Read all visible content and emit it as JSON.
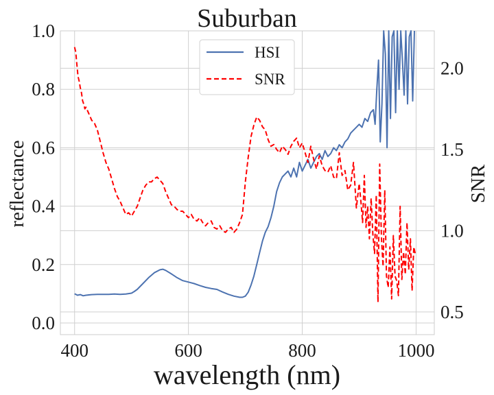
{
  "chart_data": {
    "type": "line",
    "title": "Suburban",
    "xlabel": "wavelength (nm)",
    "ylabel": "reflectance",
    "y2label": "SNR",
    "xlim": [
      375,
      1032
    ],
    "ylim": [
      -0.04,
      1.0
    ],
    "y2lim": [
      0.36,
      2.23
    ],
    "xticks": [
      400,
      600,
      800,
      1000
    ],
    "yticks": [
      0.0,
      0.2,
      0.4,
      0.6,
      0.8,
      1.0
    ],
    "y2ticks": [
      0.5,
      1.0,
      1.5,
      2.0
    ],
    "xtick_labels": [
      "400",
      "600",
      "800",
      "1000"
    ],
    "ytick_labels": [
      "0.0",
      "0.2",
      "0.4",
      "0.6",
      "0.8",
      "1.0"
    ],
    "y2tick_labels": [
      "0.5",
      "1.0",
      "1.5",
      "2.0"
    ],
    "grid": true,
    "legend_position": "top-center",
    "series": [
      {
        "name": "HSI",
        "axis": "left",
        "color": "#4c72b0",
        "style": "solid",
        "x": [
          400,
          405,
          410,
          415,
          420,
          430,
          440,
          450,
          460,
          470,
          480,
          490,
          500,
          505,
          510,
          520,
          530,
          540,
          550,
          555,
          560,
          570,
          580,
          590,
          600,
          610,
          620,
          630,
          640,
          650,
          660,
          670,
          680,
          690,
          695,
          700,
          705,
          710,
          715,
          720,
          725,
          730,
          735,
          740,
          745,
          750,
          755,
          760,
          765,
          770,
          775,
          780,
          785,
          790,
          795,
          800,
          805,
          810,
          815,
          820,
          825,
          830,
          835,
          840,
          845,
          850,
          855,
          860,
          865,
          870,
          875,
          880,
          885,
          890,
          895,
          900,
          905,
          910,
          915,
          920,
          925,
          928,
          931,
          934,
          937,
          940,
          943,
          946,
          949,
          952,
          955,
          958,
          961,
          964,
          967,
          970,
          973,
          976,
          979,
          982,
          985,
          988,
          991,
          994,
          997
        ],
        "y": [
          0.1,
          0.095,
          0.097,
          0.093,
          0.095,
          0.097,
          0.098,
          0.098,
          0.098,
          0.099,
          0.098,
          0.099,
          0.102,
          0.108,
          0.115,
          0.135,
          0.155,
          0.172,
          0.182,
          0.184,
          0.18,
          0.168,
          0.155,
          0.145,
          0.14,
          0.135,
          0.128,
          0.122,
          0.118,
          0.115,
          0.106,
          0.098,
          0.092,
          0.088,
          0.088,
          0.092,
          0.105,
          0.13,
          0.16,
          0.2,
          0.24,
          0.28,
          0.31,
          0.33,
          0.36,
          0.4,
          0.45,
          0.48,
          0.5,
          0.51,
          0.52,
          0.5,
          0.53,
          0.5,
          0.55,
          0.52,
          0.54,
          0.56,
          0.53,
          0.55,
          0.57,
          0.58,
          0.56,
          0.59,
          0.57,
          0.58,
          0.6,
          0.59,
          0.61,
          0.6,
          0.62,
          0.63,
          0.65,
          0.66,
          0.67,
          0.68,
          0.67,
          0.7,
          0.69,
          0.72,
          0.73,
          0.68,
          0.8,
          0.9,
          0.62,
          0.75,
          1.02,
          0.92,
          0.6,
          1.05,
          0.7,
          0.98,
          1.05,
          0.72,
          1.02,
          0.8,
          1.05,
          0.9,
          0.78,
          1.04,
          0.75,
          0.98,
          1.02,
          0.76,
          1.05
        ]
      },
      {
        "name": "SNR",
        "axis": "right",
        "color": "#ff0000",
        "style": "dashed",
        "x": [
          400,
          402,
          404,
          406,
          408,
          410,
          412,
          414,
          416,
          418,
          420,
          425,
          430,
          435,
          440,
          445,
          450,
          455,
          460,
          465,
          470,
          475,
          480,
          485,
          490,
          495,
          500,
          505,
          510,
          515,
          520,
          525,
          530,
          535,
          540,
          545,
          550,
          555,
          560,
          565,
          570,
          575,
          580,
          585,
          590,
          595,
          600,
          605,
          610,
          615,
          620,
          625,
          630,
          635,
          640,
          645,
          650,
          655,
          660,
          665,
          670,
          675,
          680,
          685,
          690,
          695,
          700,
          705,
          710,
          715,
          720,
          725,
          730,
          735,
          740,
          745,
          750,
          755,
          760,
          765,
          770,
          775,
          780,
          785,
          790,
          795,
          800,
          805,
          810,
          815,
          820,
          825,
          830,
          835,
          840,
          845,
          850,
          855,
          860,
          865,
          870,
          875,
          880,
          885,
          890,
          895,
          900,
          903,
          906,
          909,
          912,
          915,
          918,
          921,
          924,
          927,
          930,
          933,
          936,
          939,
          942,
          945,
          948,
          951,
          954,
          957,
          960,
          963,
          966,
          969,
          972,
          975,
          978,
          981,
          984,
          987,
          990,
          993,
          996,
          999
        ],
        "y": [
          2.13,
          2.1,
          2.02,
          1.95,
          1.92,
          1.88,
          1.85,
          1.8,
          1.78,
          1.75,
          1.76,
          1.72,
          1.68,
          1.66,
          1.62,
          1.55,
          1.48,
          1.42,
          1.38,
          1.32,
          1.26,
          1.21,
          1.18,
          1.14,
          1.1,
          1.11,
          1.09,
          1.12,
          1.15,
          1.2,
          1.25,
          1.28,
          1.3,
          1.3,
          1.32,
          1.33,
          1.31,
          1.29,
          1.24,
          1.2,
          1.16,
          1.15,
          1.13,
          1.12,
          1.12,
          1.1,
          1.08,
          1.1,
          1.07,
          1.06,
          1.08,
          1.05,
          1.03,
          1.05,
          1.06,
          1.02,
          1.01,
          1.03,
          1.0,
          0.99,
          1.01,
          1.02,
          0.99,
          1.01,
          1.05,
          1.1,
          1.3,
          1.45,
          1.58,
          1.65,
          1.7,
          1.68,
          1.64,
          1.62,
          1.56,
          1.52,
          1.53,
          1.5,
          1.48,
          1.52,
          1.5,
          1.47,
          1.52,
          1.55,
          1.57,
          1.51,
          1.54,
          1.48,
          1.42,
          1.52,
          1.44,
          1.38,
          1.46,
          1.4,
          1.37,
          1.36,
          1.4,
          1.33,
          1.32,
          1.48,
          1.34,
          1.37,
          1.25,
          1.28,
          1.42,
          1.14,
          1.29,
          1.18,
          1.05,
          1.34,
          1.02,
          1.15,
          0.95,
          1.2,
          0.98,
          0.86,
          1.22,
          0.56,
          1.41,
          0.96,
          0.78,
          1.25,
          0.72,
          0.65,
          0.9,
          0.58,
          0.97,
          0.72,
          0.69,
          0.6,
          1.15,
          0.7,
          0.87,
          0.73,
          1.05,
          0.76,
          0.95,
          0.63,
          0.9,
          0.85
        ]
      }
    ]
  }
}
